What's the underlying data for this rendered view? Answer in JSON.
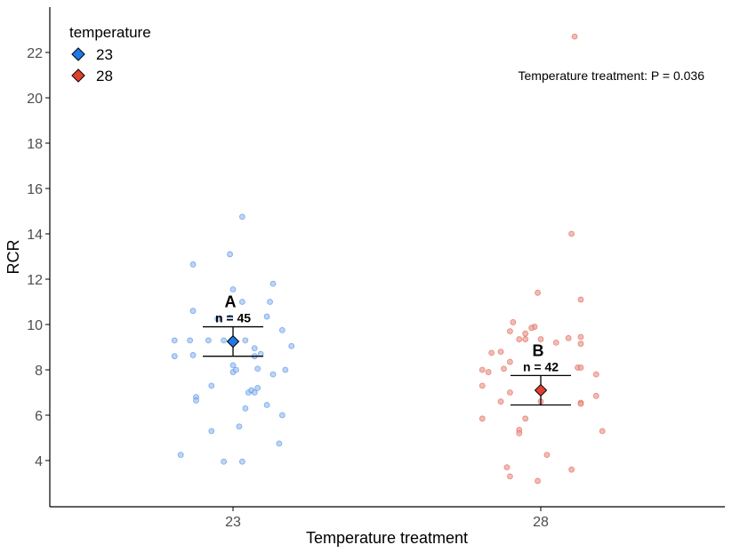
{
  "chart_data": {
    "type": "scatter",
    "subtype": "jitter-points with mean ± SE",
    "xlabel": "Temperature treatment",
    "ylabel": "RCR",
    "categories": [
      "23",
      "28"
    ],
    "ylim": [
      2,
      23.5
    ],
    "yticks": [
      4,
      6,
      8,
      10,
      12,
      14,
      16,
      18,
      20,
      22
    ],
    "grid": false,
    "legend": {
      "title": "temperature",
      "placement": "top-left",
      "entries": [
        {
          "label": "23",
          "color": "#1f78e6"
        },
        {
          "label": "28",
          "color": "#e0402e"
        }
      ]
    },
    "annotation": "Temperature treatment: P = 0.036",
    "groups": [
      {
        "category": "23",
        "color": "#1f78e6",
        "point_fill": "#a9c4f0",
        "mean": 9.25,
        "se_low": 8.6,
        "se_high": 9.9,
        "letter": "A",
        "n_label": "n = 45",
        "points": [
          {
            "dx": 0.03,
            "y": 14.75
          },
          {
            "dx": -0.13,
            "y": 12.65
          },
          {
            "dx": -0.01,
            "y": 13.1
          },
          {
            "dx": 0.13,
            "y": 11.8
          },
          {
            "dx": 0.0,
            "y": 11.55
          },
          {
            "dx": 0.03,
            "y": 11.0
          },
          {
            "dx": 0.12,
            "y": 11.0
          },
          {
            "dx": -0.13,
            "y": 10.6
          },
          {
            "dx": 0.11,
            "y": 10.35
          },
          {
            "dx": 0.16,
            "y": 9.75
          },
          {
            "dx": -0.19,
            "y": 9.3
          },
          {
            "dx": -0.14,
            "y": 9.3
          },
          {
            "dx": -0.08,
            "y": 9.3
          },
          {
            "dx": -0.03,
            "y": 9.3
          },
          {
            "dx": 0.04,
            "y": 9.3
          },
          {
            "dx": 0.19,
            "y": 9.05
          },
          {
            "dx": -0.19,
            "y": 8.6
          },
          {
            "dx": -0.13,
            "y": 8.65
          },
          {
            "dx": 0.07,
            "y": 8.95
          },
          {
            "dx": 0.07,
            "y": 8.6
          },
          {
            "dx": 0.09,
            "y": 8.7
          },
          {
            "dx": 0.0,
            "y": 8.2
          },
          {
            "dx": 0.08,
            "y": 8.05
          },
          {
            "dx": 0.17,
            "y": 8.0
          },
          {
            "dx": 0.0,
            "y": 7.9
          },
          {
            "dx": 0.01,
            "y": 8.0
          },
          {
            "dx": 0.13,
            "y": 7.8
          },
          {
            "dx": -0.07,
            "y": 7.3
          },
          {
            "dx": 0.05,
            "y": 7.0
          },
          {
            "dx": 0.06,
            "y": 7.1
          },
          {
            "dx": 0.07,
            "y": 7.0
          },
          {
            "dx": -0.12,
            "y": 6.8
          },
          {
            "dx": -0.12,
            "y": 6.65
          },
          {
            "dx": 0.11,
            "y": 6.45
          },
          {
            "dx": 0.04,
            "y": 6.3
          },
          {
            "dx": 0.16,
            "y": 6.0
          },
          {
            "dx": 0.02,
            "y": 5.5
          },
          {
            "dx": -0.07,
            "y": 5.3
          },
          {
            "dx": 0.15,
            "y": 4.75
          },
          {
            "dx": -0.17,
            "y": 4.25
          },
          {
            "dx": -0.03,
            "y": 3.95
          },
          {
            "dx": 0.03,
            "y": 3.95
          },
          {
            "dx": -0.01,
            "y": 10.3
          },
          {
            "dx": 0.08,
            "y": 7.2
          },
          {
            "dx": -0.05,
            "y": 10.25
          }
        ]
      },
      {
        "category": "28",
        "color": "#e0402e",
        "point_fill": "#e9a59c",
        "mean": 7.1,
        "se_low": 6.45,
        "se_high": 7.75,
        "letter": "B",
        "n_label": "n = 42",
        "points": [
          {
            "dx": 0.11,
            "y": 22.7
          },
          {
            "dx": 0.1,
            "y": 14.0
          },
          {
            "dx": -0.01,
            "y": 11.4
          },
          {
            "dx": 0.13,
            "y": 11.1
          },
          {
            "dx": -0.09,
            "y": 10.1
          },
          {
            "dx": -0.02,
            "y": 9.9
          },
          {
            "dx": -0.03,
            "y": 9.85
          },
          {
            "dx": -0.1,
            "y": 9.7
          },
          {
            "dx": 0.09,
            "y": 9.4
          },
          {
            "dx": 0.13,
            "y": 9.45
          },
          {
            "dx": -0.05,
            "y": 9.35
          },
          {
            "dx": -0.07,
            "y": 9.35
          },
          {
            "dx": 0.0,
            "y": 9.35
          },
          {
            "dx": 0.05,
            "y": 9.2
          },
          {
            "dx": 0.13,
            "y": 9.15
          },
          {
            "dx": -0.16,
            "y": 8.75
          },
          {
            "dx": -0.13,
            "y": 8.8
          },
          {
            "dx": -0.1,
            "y": 8.35
          },
          {
            "dx": -0.12,
            "y": 8.05
          },
          {
            "dx": 0.12,
            "y": 8.1
          },
          {
            "dx": 0.13,
            "y": 8.1
          },
          {
            "dx": -0.19,
            "y": 8.0
          },
          {
            "dx": -0.17,
            "y": 7.9
          },
          {
            "dx": 0.18,
            "y": 7.8
          },
          {
            "dx": -0.19,
            "y": 7.3
          },
          {
            "dx": -0.1,
            "y": 7.0
          },
          {
            "dx": -0.13,
            "y": 6.6
          },
          {
            "dx": 0.18,
            "y": 6.85
          },
          {
            "dx": 0.13,
            "y": 6.55
          },
          {
            "dx": 0.13,
            "y": 6.5
          },
          {
            "dx": -0.05,
            "y": 5.85
          },
          {
            "dx": -0.19,
            "y": 5.85
          },
          {
            "dx": -0.07,
            "y": 5.35
          },
          {
            "dx": -0.07,
            "y": 5.2
          },
          {
            "dx": 0.2,
            "y": 5.3
          },
          {
            "dx": 0.02,
            "y": 4.25
          },
          {
            "dx": -0.11,
            "y": 3.7
          },
          {
            "dx": -0.1,
            "y": 3.3
          },
          {
            "dx": 0.1,
            "y": 3.6
          },
          {
            "dx": -0.01,
            "y": 3.1
          },
          {
            "dx": 0.0,
            "y": 6.6
          },
          {
            "dx": -0.05,
            "y": 9.6
          }
        ]
      }
    ]
  }
}
